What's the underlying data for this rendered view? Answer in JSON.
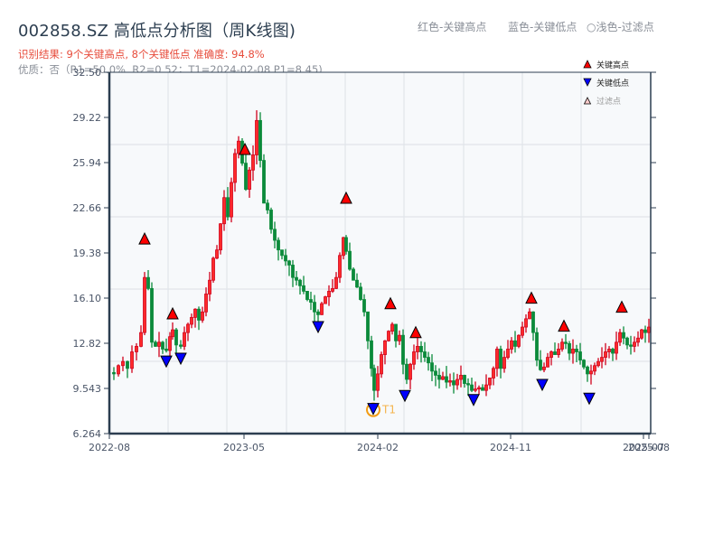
{
  "header": {
    "title": "002858.SZ 高低点分析图（周K线图)",
    "legend_red": "红色-关键高点",
    "legend_blue": "蓝色-关键低点",
    "legend_light": "○浅色-过滤点",
    "result_line": "识别结果: 9个关键高点, 8个关键低点  准确度: 94.8%",
    "quality_line": "优质：否（R1=50.0%, R2=0.52；T1=2024-02-08 P1=8.45)"
  },
  "colors": {
    "up": "#d0021b",
    "down": "#0a8a3a",
    "high_marker": "#ff0000",
    "low_marker": "#0000ff",
    "t1_ring": "#f39c12",
    "axis": "#2c3e50",
    "grid": "#e1e5ea",
    "plot_bg": "#f7f9fb"
  },
  "chart_data": {
    "type": "candlestick",
    "title": "002858.SZ 高低点分析图（周K线图)",
    "xlabel": "",
    "ylabel": "",
    "ylim": [
      6.264,
      32.5
    ],
    "yticks": [
      "32.50",
      "29.22",
      "25.94",
      "22.66",
      "19.38",
      "16.10",
      "12.82",
      "9.543",
      "6.264"
    ],
    "xticks": [
      {
        "label": "2022-08",
        "x": 121
      },
      {
        "label": "2023-05",
        "x": 270
      },
      {
        "label": "2024-02",
        "x": 418
      },
      {
        "label": "2024-11",
        "x": 565
      },
      {
        "label": "2025-07",
        "x": 712
      },
      {
        "label": "2025-08",
        "x": 718
      }
    ],
    "grid": true,
    "legend": {
      "position": "upper right",
      "entries": [
        {
          "label": "关键高点",
          "marker": "triangle-up",
          "color": "#ff0000"
        },
        {
          "label": "关键低点",
          "marker": "triangle-down",
          "color": "#0000ff"
        },
        {
          "label": "过滤点",
          "marker": "triangle-up-outline",
          "color": "#ffcccc"
        }
      ]
    },
    "key_highs": [
      {
        "x": 160,
        "price": 19.9
      },
      {
        "x": 191,
        "price": 14.46
      },
      {
        "x": 271,
        "price": 26.4
      },
      {
        "x": 383,
        "price": 22.86
      },
      {
        "x": 432,
        "price": 15.2
      },
      {
        "x": 460,
        "price": 13.1
      },
      {
        "x": 588,
        "price": 15.6
      },
      {
        "x": 624,
        "price": 13.57
      },
      {
        "x": 688,
        "price": 14.95
      }
    ],
    "key_lows": [
      {
        "x": 184,
        "price": 11.9
      },
      {
        "x": 200,
        "price": 12.1
      },
      {
        "x": 352,
        "price": 14.4
      },
      {
        "x": 413,
        "price": 8.45,
        "label": "T1"
      },
      {
        "x": 448,
        "price": 9.4
      },
      {
        "x": 524,
        "price": 9.1
      },
      {
        "x": 600,
        "price": 10.2
      },
      {
        "x": 652,
        "price": 9.2
      }
    ],
    "close_path": [
      [
        121,
        10.7
      ],
      [
        126,
        10.6
      ],
      [
        131,
        11.2
      ],
      [
        136,
        11.5
      ],
      [
        141,
        11.0
      ],
      [
        146,
        12.2
      ],
      [
        151,
        12.6
      ],
      [
        156,
        13.6
      ],
      [
        160,
        17.6
      ],
      [
        164,
        16.8
      ],
      [
        168,
        12.9
      ],
      [
        172,
        12.6
      ],
      [
        176,
        12.9
      ],
      [
        180,
        12.4
      ],
      [
        184,
        12.3
      ],
      [
        188,
        13.3
      ],
      [
        191,
        13.8
      ],
      [
        195,
        12.7
      ],
      [
        200,
        12.6
      ],
      [
        204,
        13.6
      ],
      [
        208,
        14.2
      ],
      [
        212,
        14.7
      ],
      [
        216,
        15.3
      ],
      [
        220,
        14.5
      ],
      [
        224,
        15.1
      ],
      [
        228,
        16.4
      ],
      [
        232,
        17.4
      ],
      [
        236,
        19.0
      ],
      [
        240,
        19.6
      ],
      [
        244,
        21.5
      ],
      [
        248,
        23.4
      ],
      [
        252,
        22.0
      ],
      [
        256,
        24.5
      ],
      [
        260,
        26.6
      ],
      [
        264,
        27.5
      ],
      [
        268,
        25.9
      ],
      [
        272,
        24.0
      ],
      [
        276,
        25.4
      ],
      [
        280,
        26.5
      ],
      [
        284,
        29.0
      ],
      [
        288,
        26.1
      ],
      [
        292,
        23.0
      ],
      [
        296,
        22.5
      ],
      [
        300,
        21.1
      ],
      [
        304,
        20.3
      ],
      [
        308,
        19.6
      ],
      [
        312,
        19.2
      ],
      [
        316,
        18.8
      ],
      [
        320,
        18.5
      ],
      [
        324,
        17.6
      ],
      [
        328,
        17.4
      ],
      [
        332,
        17.0
      ],
      [
        336,
        16.6
      ],
      [
        340,
        16.0
      ],
      [
        344,
        15.8
      ],
      [
        348,
        15.1
      ],
      [
        352,
        14.9
      ],
      [
        356,
        15.7
      ],
      [
        360,
        16.2
      ],
      [
        364,
        16.6
      ],
      [
        368,
        16.8
      ],
      [
        372,
        17.6
      ],
      [
        376,
        19.2
      ],
      [
        380,
        20.5
      ],
      [
        383,
        19.5
      ],
      [
        387,
        18.2
      ],
      [
        391,
        17.4
      ],
      [
        395,
        16.9
      ],
      [
        399,
        16.0
      ],
      [
        403,
        15.1
      ],
      [
        407,
        13.0
      ],
      [
        411,
        11.0
      ],
      [
        414,
        9.4
      ],
      [
        418,
        10.6
      ],
      [
        422,
        12.0
      ],
      [
        426,
        13.0
      ],
      [
        430,
        13.7
      ],
      [
        434,
        14.2
      ],
      [
        438,
        13.0
      ],
      [
        442,
        13.4
      ],
      [
        446,
        11.3
      ],
      [
        450,
        10.2
      ],
      [
        454,
        11.3
      ],
      [
        458,
        12.2
      ],
      [
        462,
        12.6
      ],
      [
        466,
        12.2
      ],
      [
        470,
        11.8
      ],
      [
        474,
        11.4
      ],
      [
        478,
        10.8
      ],
      [
        482,
        10.5
      ],
      [
        486,
        10.2
      ],
      [
        490,
        10.4
      ],
      [
        494,
        10.0
      ],
      [
        498,
        10.1
      ],
      [
        502,
        9.8
      ],
      [
        506,
        10.2
      ],
      [
        510,
        10.5
      ],
      [
        514,
        9.9
      ],
      [
        518,
        9.8
      ],
      [
        522,
        9.4
      ],
      [
        526,
        9.5
      ],
      [
        530,
        9.6
      ],
      [
        534,
        9.4
      ],
      [
        538,
        9.8
      ],
      [
        542,
        10.3
      ],
      [
        546,
        11.0
      ],
      [
        550,
        12.4
      ],
      [
        554,
        11.0
      ],
      [
        558,
        11.8
      ],
      [
        562,
        12.4
      ],
      [
        566,
        13.0
      ],
      [
        570,
        12.6
      ],
      [
        574,
        13.4
      ],
      [
        578,
        14.0
      ],
      [
        582,
        14.6
      ],
      [
        586,
        15.1
      ],
      [
        590,
        13.6
      ],
      [
        594,
        11.6
      ],
      [
        598,
        10.9
      ],
      [
        602,
        11.1
      ],
      [
        606,
        11.8
      ],
      [
        610,
        12.2
      ],
      [
        614,
        12.0
      ],
      [
        618,
        12.4
      ],
      [
        622,
        12.9
      ],
      [
        626,
        12.8
      ],
      [
        630,
        12.1
      ],
      [
        634,
        12.4
      ],
      [
        638,
        12.2
      ],
      [
        642,
        11.6
      ],
      [
        646,
        11.1
      ],
      [
        650,
        10.6
      ],
      [
        654,
        10.8
      ],
      [
        658,
        11.2
      ],
      [
        662,
        11.5
      ],
      [
        666,
        11.8
      ],
      [
        670,
        12.2
      ],
      [
        674,
        12.4
      ],
      [
        678,
        12.1
      ],
      [
        682,
        12.9
      ],
      [
        686,
        13.6
      ],
      [
        690,
        13.2
      ],
      [
        694,
        12.7
      ],
      [
        698,
        12.6
      ],
      [
        702,
        12.9
      ],
      [
        706,
        13.2
      ],
      [
        710,
        13.8
      ],
      [
        714,
        13.6
      ],
      [
        718,
        14.0
      ]
    ]
  }
}
